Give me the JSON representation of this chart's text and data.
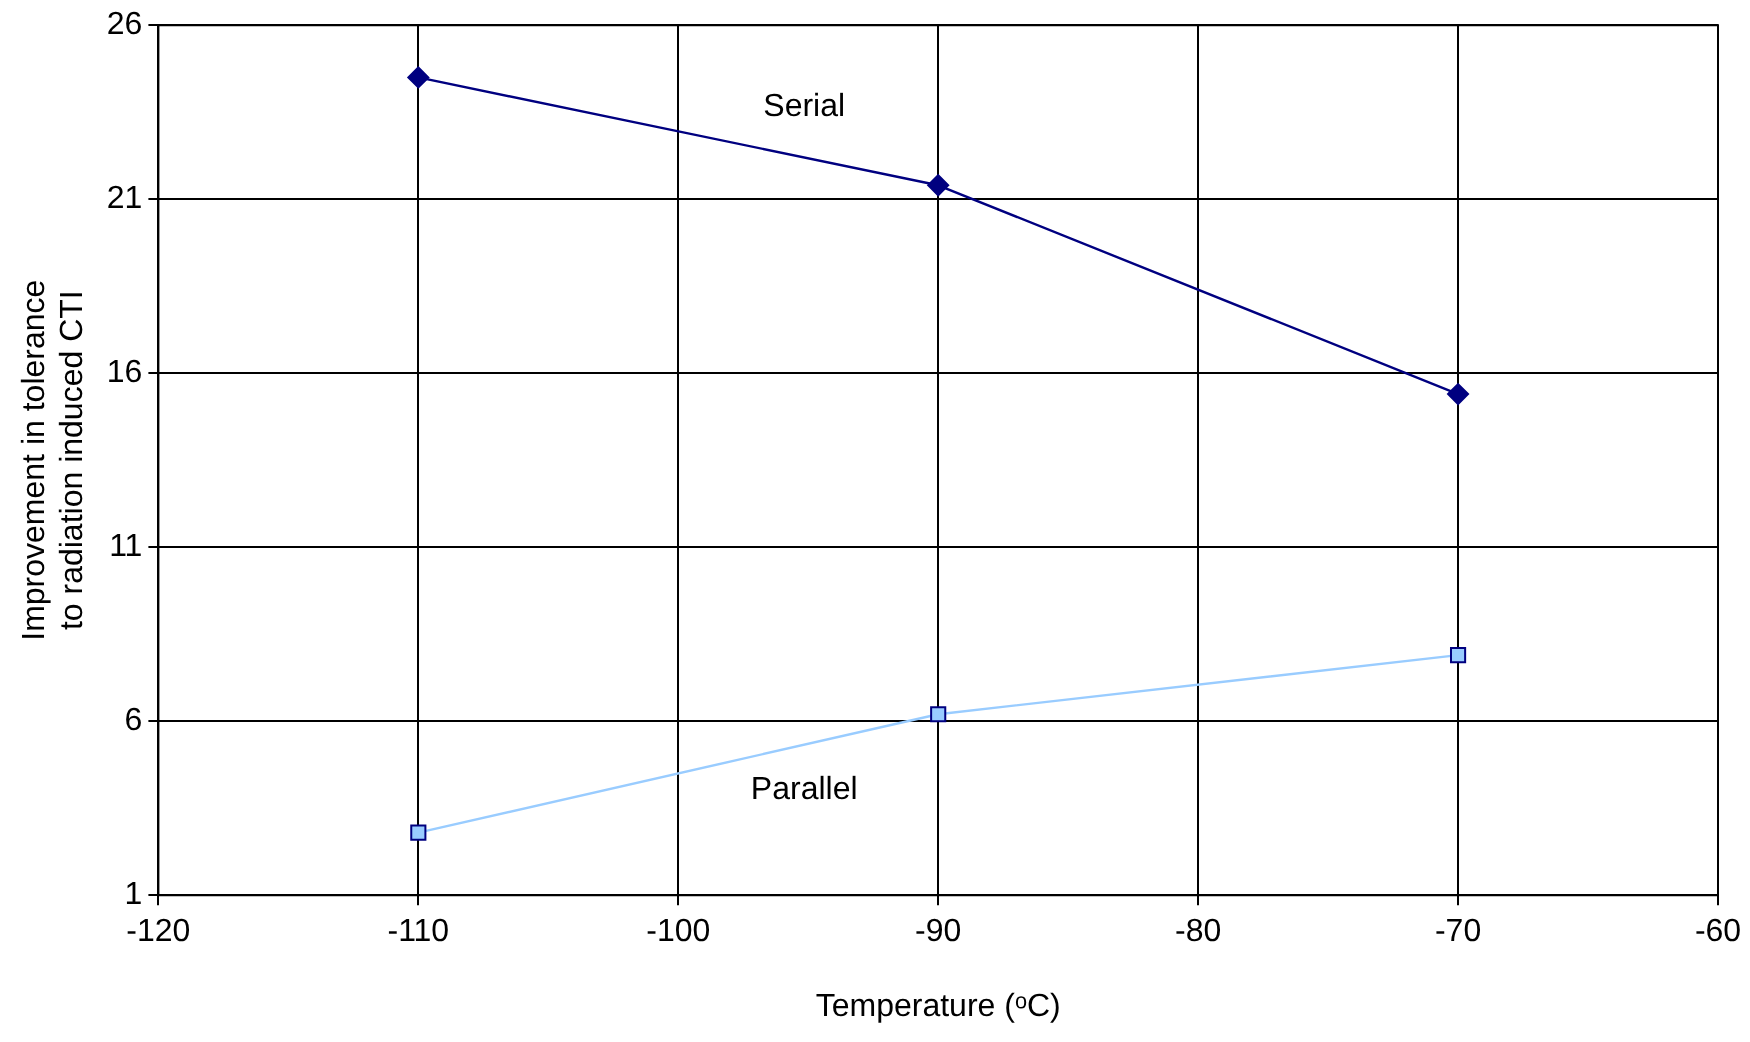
{
  "chart_data": {
    "type": "line",
    "xlabel": "Temperature (ᵒC)",
    "ylabel": "Improvement in tolerance to radiation induced CTI",
    "x": [
      -110,
      -90,
      -70
    ],
    "series": [
      {
        "name": "Serial",
        "color": "#000080",
        "marker": "diamond",
        "values": [
          24.5,
          21.4,
          15.4
        ]
      },
      {
        "name": "Parallel",
        "color": "#99ccff",
        "marker": "square",
        "values": [
          2.8,
          6.2,
          7.9
        ]
      }
    ],
    "xlim": [
      -120,
      -60
    ],
    "xticks": [
      -120,
      -110,
      -100,
      -90,
      -80,
      -70,
      -60
    ],
    "ylim": [
      1,
      26
    ],
    "yticks": [
      1,
      6,
      11,
      16,
      21,
      26
    ],
    "grid": true,
    "legend": false
  }
}
